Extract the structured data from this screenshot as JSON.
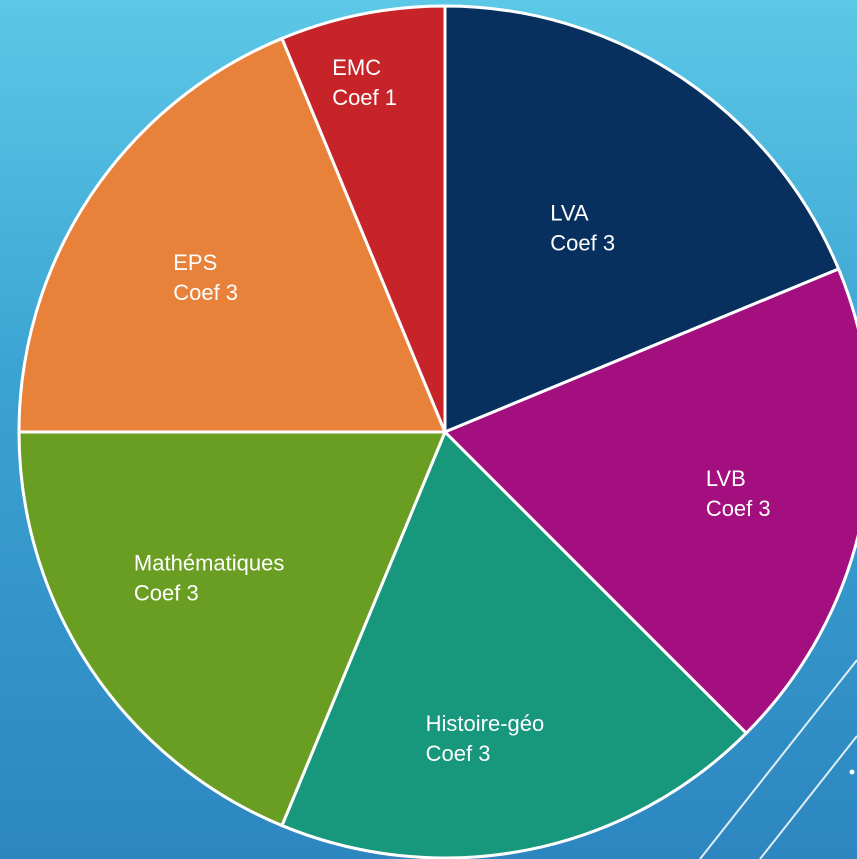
{
  "chart_data": {
    "type": "pie",
    "slices": [
      {
        "label": "LVA",
        "sublabel": "Coef 3",
        "value": 3,
        "color": "#07305f"
      },
      {
        "label": "LVB",
        "sublabel": "Coef 3",
        "value": 3,
        "color": "#a30f7e"
      },
      {
        "label": "Histoire-géo",
        "sublabel": "Coef 3",
        "value": 3,
        "color": "#17977b"
      },
      {
        "label": "Mathématiques",
        "sublabel": "Coef 3",
        "value": 3,
        "color": "#6a9e22"
      },
      {
        "label": "EPS",
        "sublabel": "Coef 3",
        "value": 3,
        "color": "#e88139"
      },
      {
        "label": "EMC",
        "sublabel": "Coef 1",
        "value": 1,
        "color": "#c62429"
      }
    ],
    "start": "12 o'clock",
    "direction": "clockwise",
    "legend": "none",
    "slice_border_color": "#ffffff"
  }
}
